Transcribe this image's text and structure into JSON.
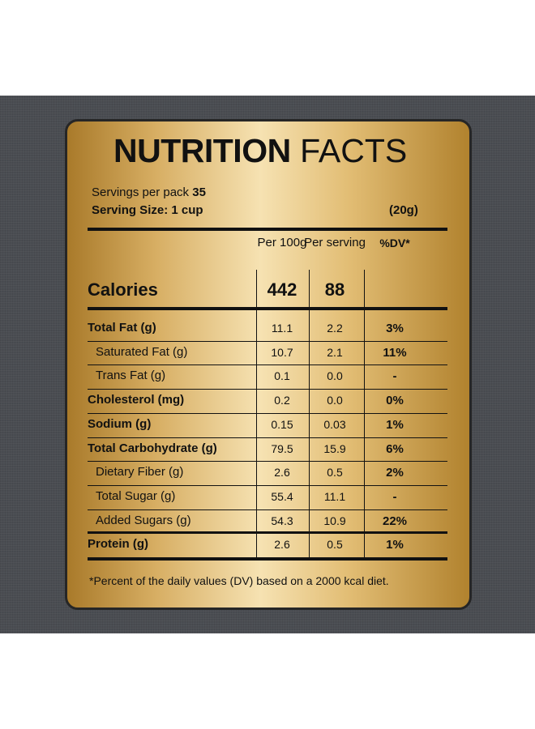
{
  "header": {
    "title_bold": "NUTRITION",
    "title_light": "FACTS",
    "servings_label": "Servings per pack",
    "servings_value": "35",
    "serving_size": "Serving Size: 1 cup",
    "serving_weight": "(20g)"
  },
  "table": {
    "columns": [
      "Per 100g",
      "Per serving",
      "%DV*"
    ],
    "calories": {
      "label": "Calories",
      "per_100g": "442",
      "per_serving": "88"
    },
    "rows": [
      {
        "label": "Total Fat (g)",
        "per_100g": "11.1",
        "per_serving": "2.2",
        "dv": "3%",
        "indent": false
      },
      {
        "label": "Saturated Fat (g)",
        "per_100g": "10.7",
        "per_serving": "2.1",
        "dv": "11%",
        "indent": true
      },
      {
        "label": "Trans Fat (g)",
        "per_100g": "0.1",
        "per_serving": "0.0",
        "dv": "-",
        "indent": true
      },
      {
        "label": "Cholesterol (mg)",
        "per_100g": "0.2",
        "per_serving": "0.0",
        "dv": "0%",
        "indent": false
      },
      {
        "label": "Sodium (g)",
        "per_100g": "0.15",
        "per_serving": "0.03",
        "dv": "1%",
        "indent": false
      },
      {
        "label": "Total Carbohydrate (g)",
        "per_100g": "79.5",
        "per_serving": "15.9",
        "dv": "6%",
        "indent": false
      },
      {
        "label": "Dietary Fiber (g)",
        "per_100g": "2.6",
        "per_serving": "0.5",
        "dv": "2%",
        "indent": true
      },
      {
        "label": "Total Sugar (g)",
        "per_100g": "55.4",
        "per_serving": "11.1",
        "dv": "-",
        "indent": true
      },
      {
        "label": "Added Sugars (g)",
        "per_100g": "54.3",
        "per_serving": "10.9",
        "dv": "22%",
        "indent": true
      },
      {
        "label": "Protein (g)",
        "per_100g": "2.6",
        "per_serving": "0.5",
        "dv": "1%",
        "indent": false
      }
    ]
  },
  "footnote": "*Percent of the daily values (DV) based on a 2000 kcal diet."
}
